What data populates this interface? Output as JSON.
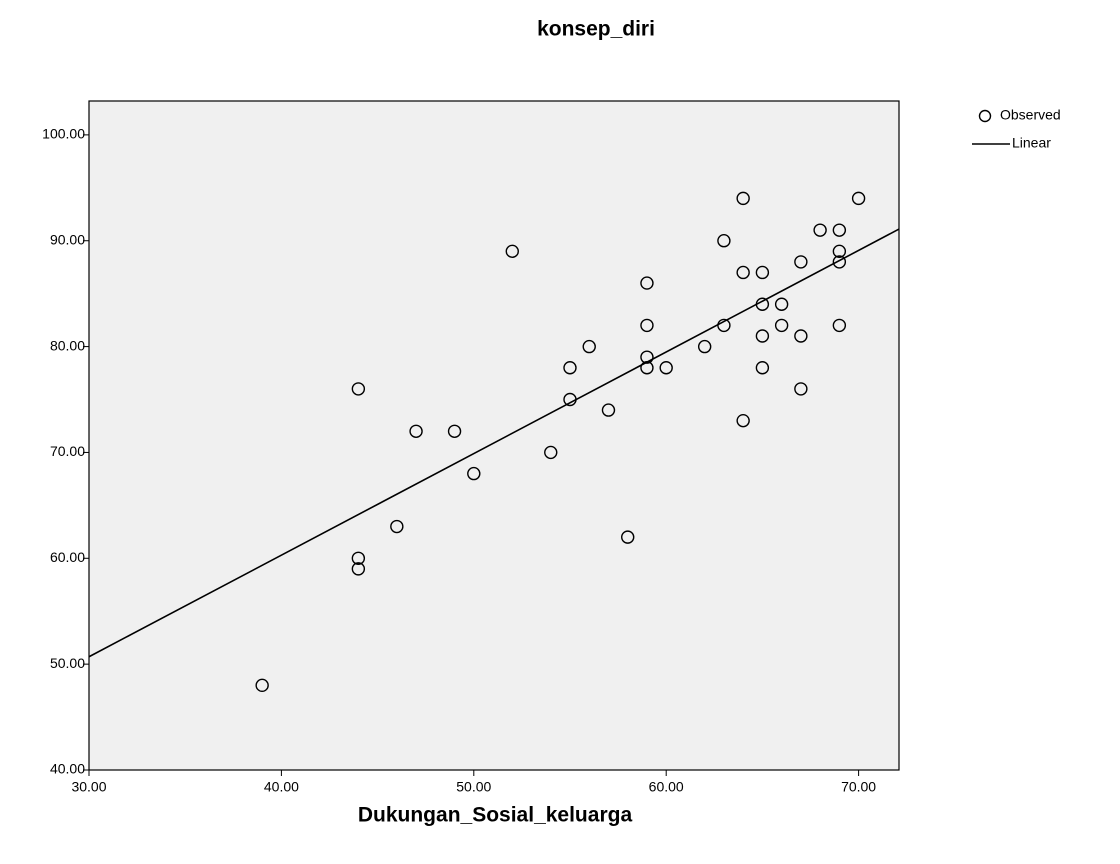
{
  "chart_data": {
    "type": "scatter",
    "title": "konsep_diri",
    "xlabel": "Dukungan_Sosial_keluarga",
    "xlim": [
      30,
      72.1
    ],
    "ylim": [
      40,
      103.2
    ],
    "xticks": [
      {
        "value": 30,
        "label": "30.00"
      },
      {
        "value": 40,
        "label": "40.00"
      },
      {
        "value": 50,
        "label": "50.00"
      },
      {
        "value": 60,
        "label": "60.00"
      },
      {
        "value": 70,
        "label": "70.00"
      }
    ],
    "yticks": [
      {
        "value": 40,
        "label": "40.00"
      },
      {
        "value": 50,
        "label": "50.00"
      },
      {
        "value": 60,
        "label": "60.00"
      },
      {
        "value": 70,
        "label": "70.00"
      },
      {
        "value": 80,
        "label": "80.00"
      },
      {
        "value": 90,
        "label": "90.00"
      },
      {
        "value": 100,
        "label": "100.00"
      }
    ],
    "legend": "outside right",
    "series": [
      {
        "name": "Observed",
        "type": "scatter",
        "color": "#000000",
        "x": [
          39,
          44,
          44,
          44,
          46,
          47,
          49,
          50,
          52,
          54,
          55,
          55,
          56,
          57,
          58,
          59,
          59,
          59,
          59,
          60,
          62,
          63,
          63,
          64,
          64,
          64,
          65,
          65,
          65,
          65,
          66,
          66,
          67,
          67,
          67,
          68,
          69,
          69,
          69,
          69,
          70
        ],
        "values": [
          48,
          60,
          59,
          76,
          63,
          72,
          72,
          68,
          89,
          70,
          78,
          75,
          80,
          74,
          62,
          86,
          82,
          79,
          78,
          78,
          80,
          90,
          82,
          94,
          87,
          73,
          87,
          84,
          81,
          78,
          84,
          82,
          88,
          81,
          76,
          91,
          91,
          89,
          88,
          82,
          94
        ]
      },
      {
        "name": "Linear",
        "type": "line",
        "color": "#000000",
        "x": [
          30,
          72.1
        ],
        "values": [
          50.7,
          91.1
        ]
      }
    ]
  }
}
